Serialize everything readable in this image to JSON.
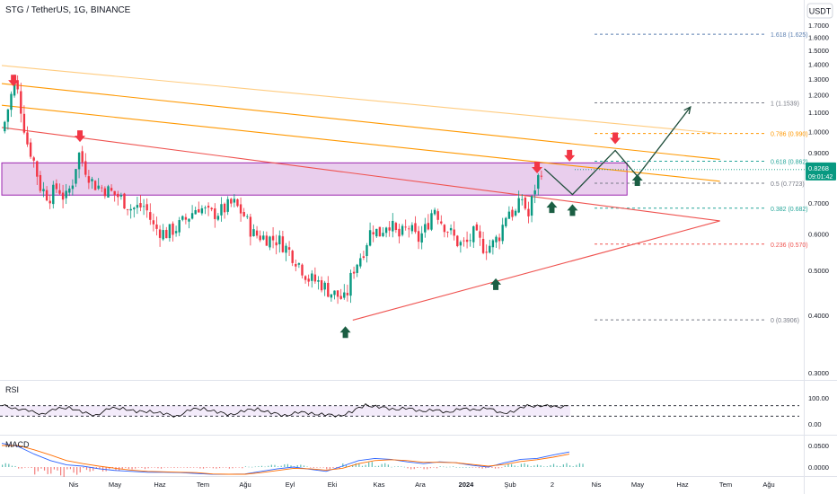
{
  "symbol_title": "STG / TetherUS, 1G, BINANCE",
  "currency": "USDT",
  "colors": {
    "up": "#089981",
    "down": "#f23645",
    "zone_fill": "#e1bee7",
    "zone_border": "#9c27b0",
    "channel_light": "#ffcc80",
    "channel_mid": "#ff9800",
    "channel_red": "#ef5350",
    "fib_blue": "#5b7fb0",
    "fib_orange": "#ff9800",
    "fib_green": "#26a69a",
    "fib_red": "#ef5350",
    "fib_gray": "#787b86",
    "price_tag": "#089981",
    "rsi_line": "#000000",
    "macd_line": "#2962ff",
    "signal_line": "#ff6d00"
  },
  "chart_data": [
    {
      "type": "candlestick",
      "title": "STG / TetherUS, 1G, BINANCE",
      "y_scale": "log",
      "ylim": [
        0.3,
        1.75
      ],
      "y_ticks": [
        "1.7000",
        "1.6000",
        "1.5000",
        "1.4000",
        "1.3000",
        "1.2000",
        "1.1000",
        "1.0000",
        "0.9000",
        "0.7000",
        "0.6000",
        "0.5000",
        "0.4000",
        "0.3000"
      ],
      "x_ticks": [
        "Nis",
        "May",
        "Haz",
        "Tem",
        "Ağu",
        "Eyl",
        "Eki",
        "Kas",
        "Ara",
        "2024",
        "Şub",
        "2",
        "Nis",
        "May",
        "Haz",
        "Tem",
        "Ağu"
      ],
      "close_path": [
        [
          "2023-03-03",
          1.05
        ],
        [
          "2023-03-08",
          1.22
        ],
        [
          "2023-03-10",
          1.3
        ],
        [
          "2023-03-14",
          1.12
        ],
        [
          "2023-03-18",
          0.95
        ],
        [
          "2023-03-22",
          0.88
        ],
        [
          "2023-03-27",
          0.76
        ],
        [
          "2023-04-02",
          0.72
        ],
        [
          "2023-04-08",
          0.76
        ],
        [
          "2023-04-13",
          0.71
        ],
        [
          "2023-04-18",
          0.78
        ],
        [
          "2023-04-22",
          0.9
        ],
        [
          "2023-04-26",
          0.84
        ],
        [
          "2023-05-02",
          0.77
        ],
        [
          "2023-05-10",
          0.75
        ],
        [
          "2023-05-20",
          0.72
        ],
        [
          "2023-05-28",
          0.68
        ],
        [
          "2023-06-06",
          0.69
        ],
        [
          "2023-06-12",
          0.62
        ],
        [
          "2023-06-20",
          0.6
        ],
        [
          "2023-06-28",
          0.62
        ],
        [
          "2023-07-05",
          0.65
        ],
        [
          "2023-07-12",
          0.69
        ],
        [
          "2023-07-20",
          0.66
        ],
        [
          "2023-07-27",
          0.67
        ],
        [
          "2023-08-05",
          0.7
        ],
        [
          "2023-08-12",
          0.66
        ],
        [
          "2023-08-18",
          0.6
        ],
        [
          "2023-08-26",
          0.59
        ],
        [
          "2023-09-05",
          0.58
        ],
        [
          "2023-09-12",
          0.55
        ],
        [
          "2023-09-18",
          0.52
        ],
        [
          "2023-09-25",
          0.48
        ],
        [
          "2023-10-03",
          0.47
        ],
        [
          "2023-10-09",
          0.45
        ],
        [
          "2023-10-15",
          0.44
        ],
        [
          "2023-10-20",
          0.43
        ],
        [
          "2023-10-25",
          0.5
        ],
        [
          "2023-11-01",
          0.55
        ],
        [
          "2023-11-07",
          0.62
        ],
        [
          "2023-11-12",
          0.6
        ],
        [
          "2023-11-18",
          0.64
        ],
        [
          "2023-11-25",
          0.59
        ],
        [
          "2023-12-02",
          0.62
        ],
        [
          "2023-12-08",
          0.58
        ],
        [
          "2023-12-14",
          0.62
        ],
        [
          "2023-12-19",
          0.69
        ],
        [
          "2023-12-24",
          0.64
        ],
        [
          "2023-12-29",
          0.61
        ],
        [
          "2024-01-05",
          0.57
        ],
        [
          "2024-01-10",
          0.57
        ],
        [
          "2024-01-15",
          0.6
        ],
        [
          "2024-01-22",
          0.56
        ],
        [
          "2024-01-28",
          0.57
        ],
        [
          "2024-02-02",
          0.6
        ],
        [
          "2024-02-07",
          0.68
        ],
        [
          "2024-02-12",
          0.66
        ],
        [
          "2024-02-17",
          0.72
        ],
        [
          "2024-02-21",
          0.65
        ],
        [
          "2024-02-25",
          0.75
        ],
        [
          "2024-03-01",
          0.83
        ]
      ],
      "series_names": []
    },
    {
      "type": "drawings",
      "fib_levels": [
        {
          "label": "1.618 (1.625)",
          "value": 1.625,
          "color": "fib_blue"
        },
        {
          "label": "1 (1.1539)",
          "value": 1.1539,
          "color": "fib_gray"
        },
        {
          "label": "0.786 (0.990)",
          "value": 0.99,
          "color": "fib_orange"
        },
        {
          "label": "0.618 (0.862)",
          "value": 0.862,
          "color": "fib_green"
        },
        {
          "label": "0.5 (0.7723)",
          "value": 0.7723,
          "color": "fib_gray"
        },
        {
          "label": "0.382 (0.682)",
          "value": 0.682,
          "color": "fib_green"
        },
        {
          "label": "0.236 (0.570)",
          "value": 0.57,
          "color": "fib_red"
        },
        {
          "label": "0 (0.3906)",
          "value": 0.3906,
          "color": "fib_gray"
        }
      ],
      "zone": {
        "from": "2023-03-01",
        "to": "2024-04-28",
        "low": 0.728,
        "high": 0.855
      },
      "channel_lines": [
        {
          "color": "channel_light",
          "p1": [
            "2023-03-01",
            1.39
          ],
          "p2": [
            "2024-06-30",
            0.99
          ]
        },
        {
          "color": "channel_mid",
          "p1": [
            "2023-03-01",
            1.27
          ],
          "p2": [
            "2024-06-30",
            0.87
          ]
        },
        {
          "color": "channel_mid",
          "p1": [
            "2023-03-01",
            1.14
          ],
          "p2": [
            "2024-06-30",
            0.78
          ]
        },
        {
          "color": "channel_red",
          "p1": [
            "2023-03-01",
            1.02
          ],
          "p2": [
            "2024-06-30",
            0.64
          ]
        },
        {
          "color": "channel_red",
          "p1": [
            "2023-10-25",
            0.39
          ],
          "p2": [
            "2024-06-30",
            0.64
          ]
        }
      ],
      "projection_path": [
        [
          "2024-03-03",
          0.83
        ],
        [
          "2024-03-22",
          0.73
        ],
        [
          "2024-04-20",
          0.91
        ],
        [
          "2024-05-05",
          0.8
        ],
        [
          "2024-06-10",
          1.13
        ]
      ],
      "arrows_down": [
        [
          "2023-03-09",
          1.28
        ],
        [
          "2023-04-23",
          0.97
        ],
        [
          "2024-02-27",
          0.83
        ],
        [
          "2024-03-20",
          0.88
        ],
        [
          "2024-04-20",
          0.96
        ]
      ],
      "arrows_up": [
        [
          "2023-10-20",
          0.37
        ],
        [
          "2024-01-30",
          0.47
        ],
        [
          "2024-03-08",
          0.69
        ],
        [
          "2024-03-22",
          0.68
        ],
        [
          "2024-05-05",
          0.79
        ]
      ],
      "price_tag": {
        "value": "0.8268",
        "time": "09:01:42"
      }
    },
    {
      "type": "line",
      "title": "RSI",
      "y_ticks": [
        "100.00",
        "0.00"
      ],
      "ylim": [
        0,
        100
      ],
      "levels": [
        70,
        30
      ],
      "series": [
        {
          "values": [
            70,
            62,
            48,
            40,
            55,
            66,
            42,
            35,
            58,
            62,
            45,
            50,
            38,
            30,
            54,
            60,
            44,
            36,
            50,
            58,
            42,
            32,
            45,
            40,
            36,
            30,
            48,
            72,
            66,
            55,
            62,
            48,
            56,
            42,
            60,
            52,
            64,
            40,
            50,
            68,
            72,
            64,
            70
          ]
        }
      ]
    },
    {
      "type": "bar",
      "title": "MACD",
      "y_ticks": [
        "0.0500",
        "0.0000"
      ],
      "series": [
        {
          "name": "",
          "values": [
            0.055,
            0.048,
            0.03,
            0.015,
            0.005,
            0.002,
            -0.004,
            -0.008,
            -0.01,
            -0.012,
            -0.012,
            -0.013,
            -0.015,
            -0.018,
            -0.02,
            -0.016,
            -0.01,
            -0.004,
            0.0,
            -0.005,
            -0.01,
            0.002,
            0.015,
            0.02,
            0.018,
            0.012,
            0.008,
            0.012,
            0.01,
            0.004,
            0.0,
            0.01,
            0.018,
            0.02,
            0.028,
            0.035
          ]
        },
        {
          "name": "",
          "values": [
            0.05,
            0.05,
            0.04,
            0.028,
            0.015,
            0.008,
            0.002,
            -0.003,
            -0.007,
            -0.01,
            -0.011,
            -0.012,
            -0.013,
            -0.016,
            -0.018,
            -0.017,
            -0.013,
            -0.008,
            -0.003,
            -0.004,
            -0.007,
            -0.003,
            0.008,
            0.015,
            0.017,
            0.015,
            0.011,
            0.011,
            0.01,
            0.006,
            0.002,
            0.006,
            0.013,
            0.017,
            0.023,
            0.03
          ]
        }
      ]
    }
  ]
}
